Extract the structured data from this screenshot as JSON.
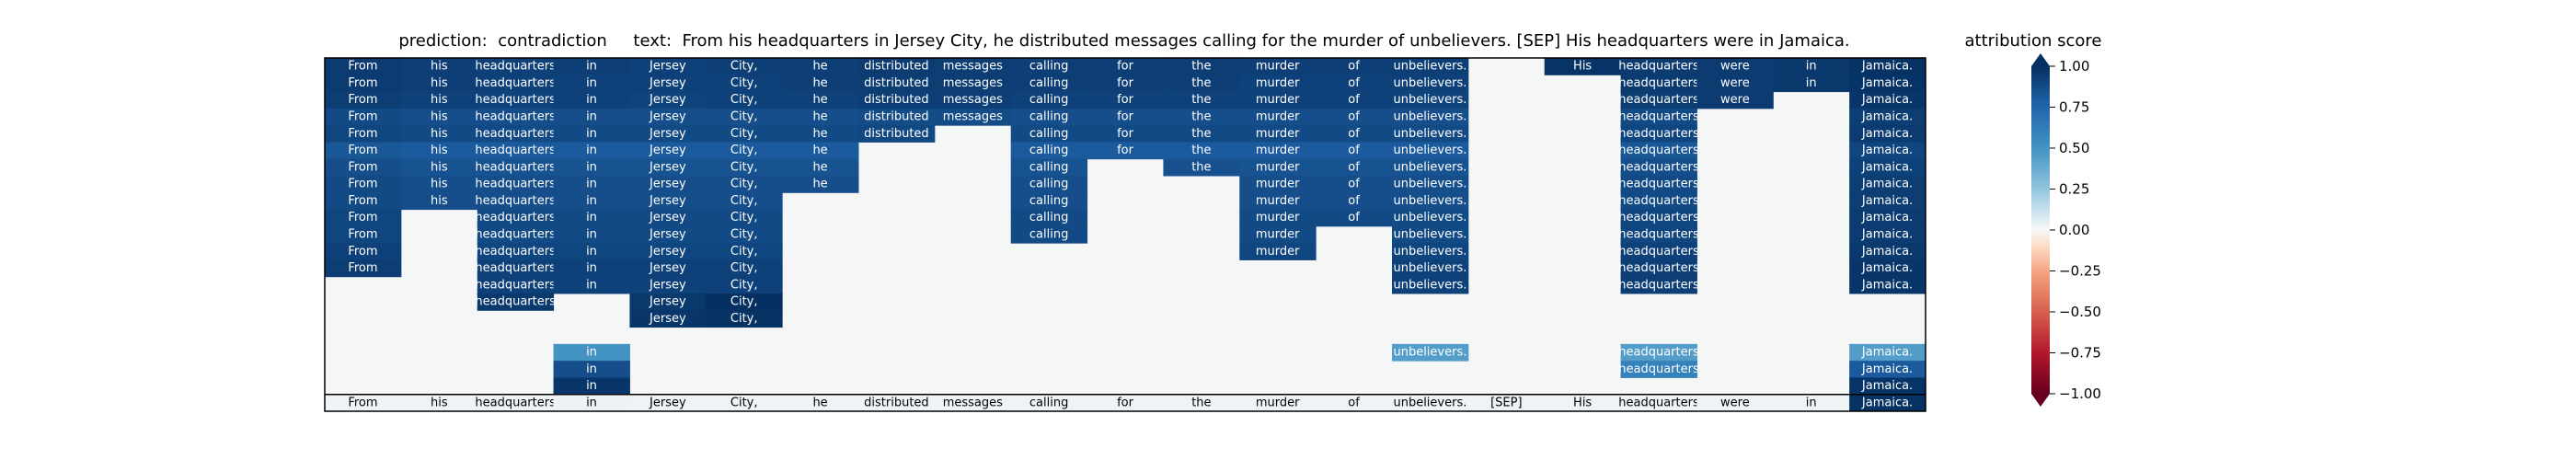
{
  "title": {
    "prediction_label": "prediction:",
    "prediction": "contradiction",
    "text_label": "text:",
    "text": "From his headquarters in Jersey City, he distributed messages calling for the murder of unbelievers. [SEP] His headquarters were in Jamaica."
  },
  "colors": {
    "background": "#f5f6f6",
    "frame": "#000000",
    "cell_text_light": "#ffffff",
    "cell_text_dark": "#000000"
  },
  "chart_data": [
    {
      "type": "heatmap",
      "title": "",
      "tokens": [
        "From",
        "his",
        "headquarters",
        "in",
        "Jersey",
        "City,",
        "he",
        "distributed",
        "messages",
        "calling",
        "for",
        "the",
        "murder",
        "of",
        "unbelievers.",
        "[SEP]",
        "His",
        "headquarters",
        "were",
        "in",
        "Jamaica."
      ],
      "rows": [
        {
          "cells": [
            [
              0,
              0.95
            ],
            [
              1,
              0.93
            ],
            [
              2,
              0.92
            ],
            [
              3,
              0.93
            ],
            [
              4,
              0.92
            ],
            [
              5,
              0.93
            ],
            [
              6,
              0.93
            ],
            [
              7,
              0.95
            ],
            [
              8,
              0.94
            ],
            [
              9,
              0.93
            ],
            [
              10,
              0.93
            ],
            [
              11,
              0.94
            ],
            [
              12,
              0.93
            ],
            [
              13,
              0.93
            ],
            [
              14,
              0.93
            ],
            [
              16,
              0.98
            ],
            [
              17,
              0.95
            ],
            [
              18,
              0.95
            ],
            [
              19,
              0.96
            ],
            [
              20,
              0.99
            ]
          ]
        },
        {
          "cells": [
            [
              0,
              0.95
            ],
            [
              1,
              0.93
            ],
            [
              2,
              0.92
            ],
            [
              3,
              0.92
            ],
            [
              4,
              0.92
            ],
            [
              5,
              0.92
            ],
            [
              6,
              0.93
            ],
            [
              7,
              0.94
            ],
            [
              8,
              0.94
            ],
            [
              9,
              0.93
            ],
            [
              10,
              0.93
            ],
            [
              11,
              0.93
            ],
            [
              12,
              0.92
            ],
            [
              13,
              0.92
            ],
            [
              14,
              0.92
            ],
            [
              17,
              0.95
            ],
            [
              18,
              0.95
            ],
            [
              19,
              0.96
            ],
            [
              20,
              0.98
            ]
          ]
        },
        {
          "cells": [
            [
              0,
              0.94
            ],
            [
              1,
              0.92
            ],
            [
              2,
              0.91
            ],
            [
              3,
              0.92
            ],
            [
              4,
              0.91
            ],
            [
              5,
              0.92
            ],
            [
              6,
              0.92
            ],
            [
              7,
              0.93
            ],
            [
              8,
              0.93
            ],
            [
              9,
              0.92
            ],
            [
              10,
              0.92
            ],
            [
              11,
              0.92
            ],
            [
              12,
              0.92
            ],
            [
              13,
              0.92
            ],
            [
              14,
              0.91
            ],
            [
              17,
              0.94
            ],
            [
              18,
              0.95
            ],
            [
              20,
              0.97
            ]
          ]
        },
        {
          "cells": [
            [
              0,
              0.88
            ],
            [
              1,
              0.86
            ],
            [
              2,
              0.86
            ],
            [
              3,
              0.86
            ],
            [
              4,
              0.86
            ],
            [
              5,
              0.86
            ],
            [
              6,
              0.86
            ],
            [
              7,
              0.87
            ],
            [
              8,
              0.87
            ],
            [
              9,
              0.86
            ],
            [
              10,
              0.86
            ],
            [
              11,
              0.86
            ],
            [
              12,
              0.86
            ],
            [
              13,
              0.86
            ],
            [
              14,
              0.86
            ],
            [
              17,
              0.88
            ],
            [
              20,
              0.94
            ]
          ]
        },
        {
          "cells": [
            [
              0,
              0.9
            ],
            [
              1,
              0.88
            ],
            [
              2,
              0.88
            ],
            [
              3,
              0.88
            ],
            [
              4,
              0.88
            ],
            [
              5,
              0.88
            ],
            [
              6,
              0.88
            ],
            [
              7,
              0.89
            ],
            [
              9,
              0.88
            ],
            [
              10,
              0.88
            ],
            [
              11,
              0.88
            ],
            [
              12,
              0.88
            ],
            [
              13,
              0.88
            ],
            [
              14,
              0.88
            ],
            [
              17,
              0.9
            ],
            [
              20,
              0.95
            ]
          ]
        },
        {
          "cells": [
            [
              0,
              0.82
            ],
            [
              1,
              0.8
            ],
            [
              2,
              0.8
            ],
            [
              3,
              0.8
            ],
            [
              4,
              0.8
            ],
            [
              5,
              0.8
            ],
            [
              6,
              0.8
            ],
            [
              9,
              0.8
            ],
            [
              10,
              0.8
            ],
            [
              11,
              0.8
            ],
            [
              12,
              0.8
            ],
            [
              13,
              0.8
            ],
            [
              14,
              0.8
            ],
            [
              17,
              0.82
            ],
            [
              20,
              0.9
            ]
          ]
        },
        {
          "cells": [
            [
              0,
              0.86
            ],
            [
              1,
              0.84
            ],
            [
              2,
              0.84
            ],
            [
              3,
              0.84
            ],
            [
              4,
              0.84
            ],
            [
              5,
              0.84
            ],
            [
              6,
              0.84
            ],
            [
              9,
              0.84
            ],
            [
              11,
              0.85
            ],
            [
              12,
              0.84
            ],
            [
              13,
              0.84
            ],
            [
              14,
              0.84
            ],
            [
              17,
              0.86
            ],
            [
              20,
              0.92
            ]
          ]
        },
        {
          "cells": [
            [
              0,
              0.88
            ],
            [
              1,
              0.86
            ],
            [
              2,
              0.86
            ],
            [
              3,
              0.86
            ],
            [
              4,
              0.86
            ],
            [
              5,
              0.86
            ],
            [
              6,
              0.86
            ],
            [
              9,
              0.86
            ],
            [
              12,
              0.86
            ],
            [
              13,
              0.86
            ],
            [
              14,
              0.86
            ],
            [
              17,
              0.88
            ],
            [
              20,
              0.94
            ]
          ]
        },
        {
          "cells": [
            [
              0,
              0.88
            ],
            [
              1,
              0.86
            ],
            [
              2,
              0.86
            ],
            [
              3,
              0.86
            ],
            [
              4,
              0.86
            ],
            [
              5,
              0.86
            ],
            [
              9,
              0.86
            ],
            [
              12,
              0.86
            ],
            [
              13,
              0.86
            ],
            [
              14,
              0.86
            ],
            [
              17,
              0.88
            ],
            [
              20,
              0.94
            ]
          ]
        },
        {
          "cells": [
            [
              0,
              0.9
            ],
            [
              2,
              0.88
            ],
            [
              3,
              0.88
            ],
            [
              4,
              0.88
            ],
            [
              5,
              0.88
            ],
            [
              9,
              0.88
            ],
            [
              12,
              0.88
            ],
            [
              13,
              0.88
            ],
            [
              14,
              0.88
            ],
            [
              17,
              0.9
            ],
            [
              20,
              0.95
            ]
          ]
        },
        {
          "cells": [
            [
              0,
              0.9
            ],
            [
              2,
              0.88
            ],
            [
              3,
              0.88
            ],
            [
              4,
              0.88
            ],
            [
              5,
              0.88
            ],
            [
              9,
              0.88
            ],
            [
              12,
              0.88
            ],
            [
              14,
              0.88
            ],
            [
              17,
              0.9
            ],
            [
              20,
              0.95
            ]
          ]
        },
        {
          "cells": [
            [
              0,
              0.92
            ],
            [
              2,
              0.9
            ],
            [
              3,
              0.9
            ],
            [
              4,
              0.9
            ],
            [
              5,
              0.9
            ],
            [
              12,
              0.9
            ],
            [
              14,
              0.9
            ],
            [
              17,
              0.92
            ],
            [
              20,
              0.96
            ]
          ]
        },
        {
          "cells": [
            [
              0,
              0.94
            ],
            [
              2,
              0.92
            ],
            [
              3,
              0.92
            ],
            [
              4,
              0.92
            ],
            [
              5,
              0.92
            ],
            [
              14,
              0.92
            ],
            [
              17,
              0.93
            ],
            [
              20,
              0.97
            ]
          ]
        },
        {
          "cells": [
            [
              2,
              0.92
            ],
            [
              3,
              0.92
            ],
            [
              4,
              0.92
            ],
            [
              5,
              0.92
            ],
            [
              14,
              0.92
            ],
            [
              17,
              0.93
            ],
            [
              20,
              0.97
            ]
          ]
        },
        {
          "cells": [
            [
              2,
              0.96
            ],
            [
              4,
              0.96
            ],
            [
              5,
              1.0
            ]
          ]
        },
        {
          "cells": [
            [
              4,
              0.97
            ],
            [
              5,
              0.99
            ]
          ]
        },
        {
          "cells": []
        },
        {
          "cells": [
            [
              3,
              0.5
            ],
            [
              14,
              0.45
            ],
            [
              17,
              0.45
            ],
            [
              20,
              0.45
            ]
          ]
        },
        {
          "cells": [
            [
              3,
              0.86
            ],
            [
              17,
              0.6
            ],
            [
              20,
              0.8
            ]
          ]
        },
        {
          "cells": [
            [
              3,
              0.97
            ],
            [
              20,
              0.98
            ]
          ]
        },
        {
          "cells": [
            [
              0,
              0.02
            ],
            [
              1,
              0.02
            ],
            [
              2,
              0.02
            ],
            [
              3,
              0.03
            ],
            [
              4,
              0.02
            ],
            [
              5,
              0.02
            ],
            [
              6,
              0.02
            ],
            [
              7,
              0.02
            ],
            [
              8,
              0.02
            ],
            [
              9,
              0.02
            ],
            [
              10,
              0.02
            ],
            [
              11,
              0.02
            ],
            [
              12,
              0.02
            ],
            [
              13,
              0.02
            ],
            [
              14,
              0.02
            ],
            [
              15,
              0.02
            ],
            [
              16,
              0.02
            ],
            [
              17,
              0.02
            ],
            [
              18,
              0.02
            ],
            [
              19,
              0.02
            ],
            [
              20,
              0.99
            ]
          ]
        }
      ],
      "colorbar": {
        "label": "attribution score",
        "range": [
          -1.0,
          1.0
        ],
        "ticks": [
          "1.00",
          "0.75",
          "0.50",
          "0.25",
          "0.00",
          "−0.25",
          "−0.50",
          "−0.75",
          "−1.00"
        ],
        "colormap": "RdBu",
        "extend": "both"
      }
    }
  ]
}
